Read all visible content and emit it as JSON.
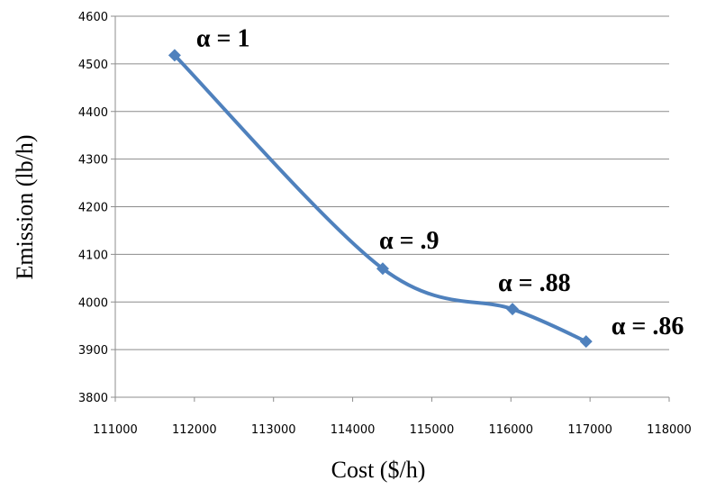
{
  "chart_data": {
    "type": "line",
    "xlabel": "Cost ($/h)",
    "ylabel": "Emission (lb/h)",
    "xlim": [
      111000,
      118000
    ],
    "ylim": [
      3800,
      4600
    ],
    "xticks": [
      111000,
      112000,
      113000,
      114000,
      115000,
      116000,
      117000,
      118000
    ],
    "yticks": [
      3800,
      3900,
      4000,
      4100,
      4200,
      4300,
      4400,
      4500,
      4600
    ],
    "grid": "horizontal",
    "smooth": true,
    "series": [
      {
        "color": "#4f81bd",
        "marker": "diamond",
        "points": [
          {
            "x": 111750,
            "y": 4518
          },
          {
            "x": 114380,
            "y": 4070
          },
          {
            "x": 116020,
            "y": 3985
          },
          {
            "x": 116950,
            "y": 3917
          }
        ]
      }
    ],
    "annotations": [
      {
        "text": "α = 1",
        "x": 111750,
        "y": 4518
      },
      {
        "text": "α = .9",
        "x": 114380,
        "y": 4070
      },
      {
        "text": "α = .88",
        "x": 116020,
        "y": 3985
      },
      {
        "text": "α = .86",
        "x": 116950,
        "y": 3917
      }
    ]
  }
}
